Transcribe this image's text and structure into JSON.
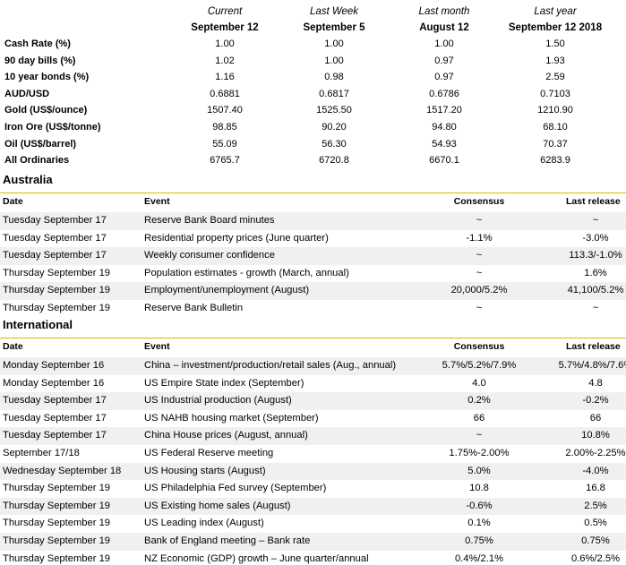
{
  "market": {
    "columns": [
      {
        "line1": "Current",
        "line2": "September 12"
      },
      {
        "line1": "Last Week",
        "line2": "September 5"
      },
      {
        "line1": "Last month",
        "line2": "August 12"
      },
      {
        "line1": "Last year",
        "line2": "September 12 2018"
      }
    ],
    "rows": [
      {
        "label": "Cash Rate (%)",
        "values": [
          "1.00",
          "1.00",
          "1.00",
          "1.50"
        ]
      },
      {
        "label": "90 day bills (%)",
        "values": [
          "1.02",
          "1.00",
          "0.97",
          "1.93"
        ]
      },
      {
        "label": "10 year bonds (%)",
        "values": [
          "1.16",
          "0.98",
          "0.97",
          "2.59"
        ]
      },
      {
        "label": "AUD/USD",
        "values": [
          "0.6881",
          "0.6817",
          "0.6786",
          "0.7103"
        ]
      },
      {
        "label": "Gold (US$/ounce)",
        "values": [
          "1507.40",
          "1525.50",
          "1517.20",
          "1210.90"
        ]
      },
      {
        "label": "Iron Ore (US$/tonne)",
        "values": [
          "98.85",
          "90.20",
          "94.80",
          "68.10"
        ]
      },
      {
        "label": "Oil (US$/barrel)",
        "values": [
          "55.09",
          "56.30",
          "54.93",
          "70.37"
        ]
      },
      {
        "label": "All Ordinaries",
        "values": [
          "6765.7",
          "6720.8",
          "6670.1",
          "6283.9"
        ]
      }
    ]
  },
  "australia": {
    "title": "Australia",
    "headers": {
      "date": "Date",
      "event": "Event",
      "consensus": "Consensus",
      "last": "Last release"
    },
    "rows": [
      {
        "date": "Tuesday September 17",
        "event": "Reserve Bank Board minutes",
        "consensus": "~",
        "last": "~"
      },
      {
        "date": "Tuesday September 17",
        "event": "Residential property prices (June quarter)",
        "consensus": "-1.1%",
        "last": "-3.0%"
      },
      {
        "date": "Tuesday September 17",
        "event": "Weekly consumer confidence",
        "consensus": "~",
        "last": "113.3/-1.0%"
      },
      {
        "date": "Thursday September 19",
        "event": "Population estimates - growth (March, annual)",
        "consensus": "~",
        "last": "1.6%"
      },
      {
        "date": "Thursday September 19",
        "event": "Employment/unemployment (August)",
        "consensus": "20,000/5.2%",
        "last": "41,100/5.2%"
      },
      {
        "date": "Thursday September 19",
        "event": "Reserve Bank Bulletin",
        "consensus": "~",
        "last": "~"
      }
    ]
  },
  "international": {
    "title": "International",
    "headers": {
      "date": "Date",
      "event": "Event",
      "consensus": "Consensus",
      "last": "Last release"
    },
    "rows": [
      {
        "date": "Monday September 16",
        "event": "China – investment/production/retail sales (Aug., annual)",
        "consensus": "5.7%/5.2%/7.9%",
        "last": "5.7%/4.8%/7.6%"
      },
      {
        "date": "Monday September 16",
        "event": "US Empire State index (September)",
        "consensus": "4.0",
        "last": "4.8"
      },
      {
        "date": "Tuesday September 17",
        "event": "US Industrial production (August)",
        "consensus": "0.2%",
        "last": "-0.2%"
      },
      {
        "date": "Tuesday September 17",
        "event": "US NAHB housing market (September)",
        "consensus": "66",
        "last": "66"
      },
      {
        "date": "Tuesday September 17",
        "event": "China House prices (August, annual)",
        "consensus": "~",
        "last": "10.8%"
      },
      {
        "date": "September 17/18",
        "event": "US Federal Reserve meeting",
        "consensus": "1.75%-2.00%",
        "last": "2.00%-2.25%"
      },
      {
        "date": "Wednesday September 18",
        "event": "US Housing starts (August)",
        "consensus": "5.0%",
        "last": "-4.0%"
      },
      {
        "date": "Thursday September 19",
        "event": "US Philadelphia Fed survey (September)",
        "consensus": "10.8",
        "last": "16.8"
      },
      {
        "date": "Thursday September 19",
        "event": "US Existing home sales (August)",
        "consensus": "-0.6%",
        "last": "2.5%"
      },
      {
        "date": "Thursday September 19",
        "event": "US Leading index (August)",
        "consensus": "0.1%",
        "last": "0.5%"
      },
      {
        "date": "Thursday September 19",
        "event": "Bank of England meeting – Bank rate",
        "consensus": "0.75%",
        "last": "0.75%"
      },
      {
        "date": "Thursday September 19",
        "event": "NZ Economic (GDP) growth – June quarter/annual",
        "consensus": "0.4%/2.1%",
        "last": "0.6%/2.5%"
      }
    ]
  }
}
